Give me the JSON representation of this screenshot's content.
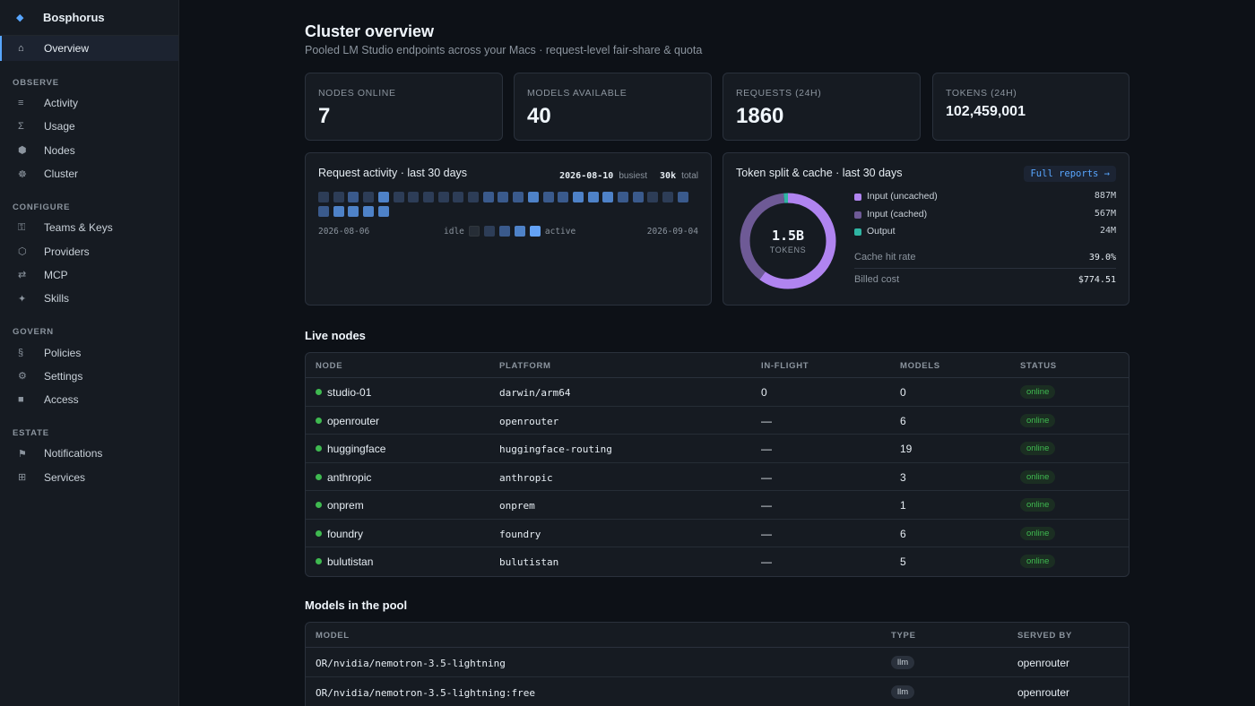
{
  "app": {
    "name": "Bosphorus"
  },
  "sidebar": {
    "overview": {
      "label": "Overview",
      "icon": "home-icon",
      "glyph": "⌂"
    },
    "sections": [
      {
        "title": "OBSERVE",
        "items": [
          {
            "label": "Activity",
            "icon": "list-icon",
            "glyph": "≡"
          },
          {
            "label": "Usage",
            "icon": "sigma-icon",
            "glyph": "Σ"
          },
          {
            "label": "Nodes",
            "icon": "hexagon-icon",
            "glyph": "⬢"
          },
          {
            "label": "Cluster",
            "icon": "helm-icon",
            "glyph": "☸"
          }
        ]
      },
      {
        "title": "CONFIGURE",
        "items": [
          {
            "label": "Teams & Keys",
            "icon": "key-icon",
            "glyph": "⚿"
          },
          {
            "label": "Providers",
            "icon": "hexagon-outline-icon",
            "glyph": "⬡"
          },
          {
            "label": "MCP",
            "icon": "arrows-icon",
            "glyph": "⇄"
          },
          {
            "label": "Skills",
            "icon": "sparkle-icon",
            "glyph": "✦"
          }
        ]
      },
      {
        "title": "GOVERN",
        "items": [
          {
            "label": "Policies",
            "icon": "section-icon",
            "glyph": "§"
          },
          {
            "label": "Settings",
            "icon": "gear-icon",
            "glyph": "⚙"
          },
          {
            "label": "Access",
            "icon": "square-icon",
            "glyph": "■"
          }
        ]
      },
      {
        "title": "ESTATE",
        "items": [
          {
            "label": "Notifications",
            "icon": "flag-icon",
            "glyph": "⚑"
          },
          {
            "label": "Services",
            "icon": "grid-icon",
            "glyph": "⊞"
          }
        ]
      }
    ]
  },
  "header": {
    "title": "Cluster overview",
    "subtitle": "Pooled LM Studio endpoints across your Macs · request-level fair-share & quota"
  },
  "stats": [
    {
      "label": "NODES ONLINE",
      "value": "7"
    },
    {
      "label": "MODELS AVAILABLE",
      "value": "40"
    },
    {
      "label": "REQUESTS (24H)",
      "value": "1860"
    },
    {
      "label": "TOKENS (24H)",
      "value": "102,459,001"
    }
  ],
  "activity": {
    "title": "Request activity · last 30 days",
    "busiest_date": "2026-08-10",
    "busiest_label": "busiest",
    "total_value": "30k",
    "total_label": "total",
    "start_date": "2026-08-06",
    "end_date": "2026-09-04",
    "idle_label": "idle",
    "active_label": "active",
    "levels": [
      1,
      1,
      2,
      1,
      3,
      1,
      1,
      1,
      1,
      1,
      1,
      2,
      2,
      2,
      3,
      2,
      2,
      3,
      3,
      3,
      2,
      2,
      1,
      1,
      2,
      2,
      3,
      3,
      3,
      3
    ],
    "colors": [
      "#262d36",
      "#2d3d57",
      "#3a5a8c",
      "#4e82c8",
      "#64a3f7"
    ]
  },
  "tokens": {
    "title": "Token split & cache · last 30 days",
    "link_label": "Full reports →",
    "total": "1.5B",
    "total_unit": "TOKENS",
    "segments": [
      {
        "name": "Input (uncached)",
        "value": "887M",
        "amount": 887,
        "color": "#b084f0"
      },
      {
        "name": "Input (cached)",
        "value": "567M",
        "amount": 567,
        "color": "#6e5a96"
      },
      {
        "name": "Output",
        "value": "24M",
        "amount": 24,
        "color": "#2fb5a3"
      }
    ],
    "cache_hit_label": "Cache hit rate",
    "cache_hit_value": "39.0%",
    "billed_label": "Billed cost",
    "billed_value": "$774.51"
  },
  "live_nodes": {
    "title": "Live nodes",
    "columns": [
      "NODE",
      "PLATFORM",
      "IN-FLIGHT",
      "MODELS",
      "STATUS"
    ],
    "rows": [
      {
        "node": "studio-01",
        "platform": "darwin/arm64",
        "inflight": "0",
        "models": "0",
        "status": "online"
      },
      {
        "node": "openrouter",
        "platform": "openrouter",
        "inflight": "—",
        "models": "6",
        "status": "online"
      },
      {
        "node": "huggingface",
        "platform": "huggingface-routing",
        "inflight": "—",
        "models": "19",
        "status": "online"
      },
      {
        "node": "anthropic",
        "platform": "anthropic",
        "inflight": "—",
        "models": "3",
        "status": "online"
      },
      {
        "node": "onprem",
        "platform": "onprem",
        "inflight": "—",
        "models": "1",
        "status": "online"
      },
      {
        "node": "foundry",
        "platform": "foundry",
        "inflight": "—",
        "models": "6",
        "status": "online"
      },
      {
        "node": "bulutistan",
        "platform": "bulutistan",
        "inflight": "—",
        "models": "5",
        "status": "online"
      }
    ]
  },
  "models": {
    "title": "Models in the pool",
    "columns": [
      "MODEL",
      "TYPE",
      "SERVED BY"
    ],
    "rows": [
      {
        "model": "OR/nvidia/nemotron-3.5-lightning",
        "type": "llm",
        "served_by": "openrouter"
      },
      {
        "model": "OR/nvidia/nemotron-3.5-lightning:free",
        "type": "llm",
        "served_by": "openrouter"
      }
    ]
  }
}
